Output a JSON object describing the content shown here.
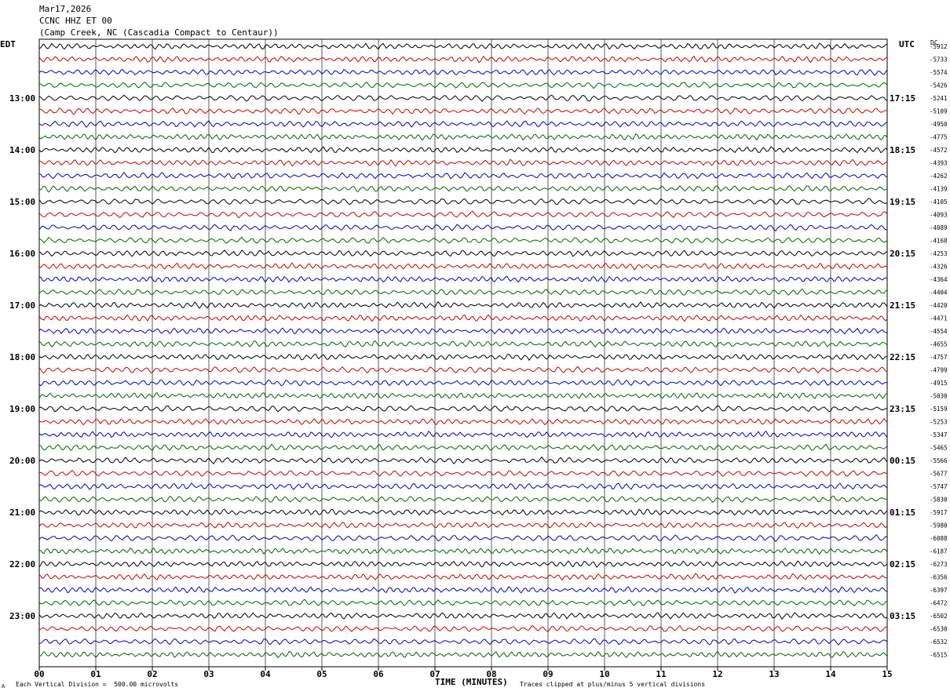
{
  "header": {
    "date": "Mar17,2026",
    "station": "CCNC HHZ ET 00",
    "location": "(Camp Creek, NC (Cascadia Compact to Centaur))"
  },
  "left_timezone": "EDT",
  "right_timezone": "UTC",
  "dc_label": "DC",
  "footer": {
    "left": "Each Vertical Division =  500.00 microvolts",
    "right": "Traces clipped at plus/minus 5 vertical divisions",
    "mark": "A"
  },
  "colors": {
    "trace_cycle": [
      "#000000",
      "#cc0000",
      "#0000cc",
      "#006600"
    ],
    "grid": "#000000"
  },
  "chart_data": {
    "type": "line",
    "title": "CCNC HHZ ET 00",
    "xlabel": "TIME (MINUTES)",
    "xlim": [
      0,
      15
    ],
    "x_ticks": [
      "00",
      "01",
      "02",
      "03",
      "04",
      "05",
      "06",
      "07",
      "08",
      "09",
      "10",
      "11",
      "12",
      "13",
      "14",
      "15"
    ],
    "minutes_per_row": 15,
    "left_hour_labels": [
      "13:00",
      "14:00",
      "15:00",
      "16:00",
      "17:00",
      "18:00",
      "19:00",
      "20:00",
      "21:00",
      "22:00",
      "23:00"
    ],
    "right_hour_labels": [
      "17:15",
      "18:15",
      "19:15",
      "20:15",
      "21:15",
      "22:15",
      "23:15",
      "00:15",
      "01:15",
      "02:15",
      "03:15"
    ],
    "dc_offsets": [
      -5912,
      -5733,
      -5574,
      -5426,
      -5241,
      -5109,
      -4950,
      -4775,
      -4572,
      -4393,
      -4262,
      -4139,
      -4105,
      -4093,
      -4089,
      -4168,
      -4253,
      -4326,
      -4364,
      -4404,
      -4420,
      -4471,
      -4554,
      -4655,
      -4757,
      -4799,
      -4915,
      -5030,
      -5159,
      -5253,
      -5347,
      -5465,
      -5566,
      -5677,
      -5747,
      -5830,
      -5917,
      -5980,
      -6088,
      -6187,
      -6273,
      -6356,
      -6397,
      -6472,
      -6502,
      -6530,
      -6532,
      -6515
    ]
  }
}
